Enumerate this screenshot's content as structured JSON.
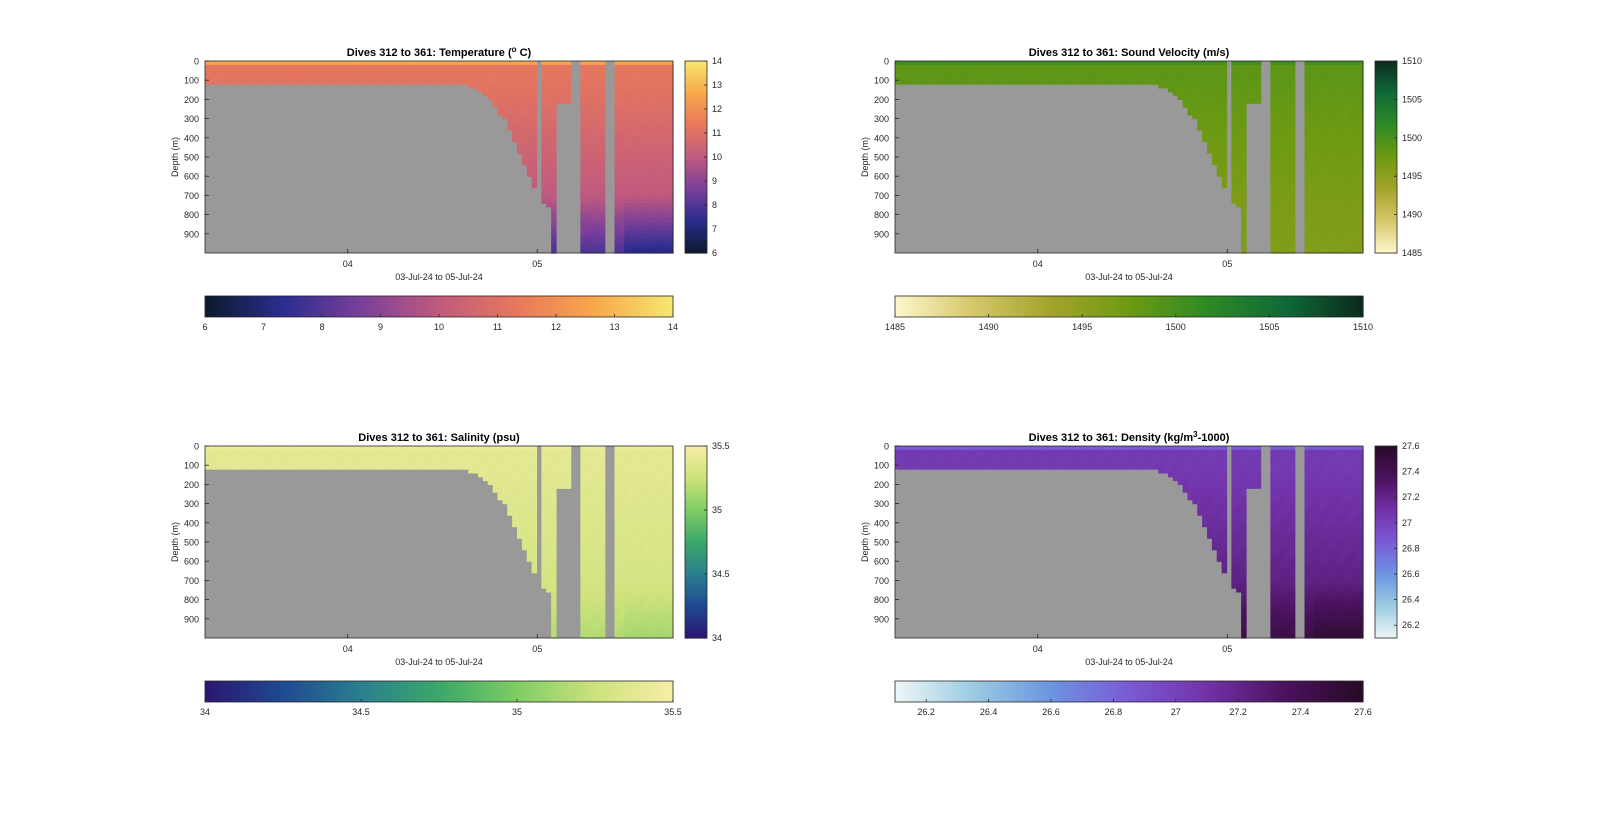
{
  "chart_data": [
    {
      "type": "heatmap",
      "title": "Dives 312 to 361: Temperature (° C)",
      "title_main": "Dives 312 to 361: Temperature (",
      "title_sup": "o",
      "title_tail": " C)",
      "xlabel": "03-Jul-24 to 05-Jul-24",
      "ylabel": "Depth (m)",
      "xticks": [
        "04",
        "05"
      ],
      "yticks": [
        "0",
        "100",
        "200",
        "300",
        "400",
        "500",
        "600",
        "700",
        "800",
        "900"
      ],
      "ylim": [
        0,
        1000
      ],
      "colormap": [
        "#0c1a2c",
        "#2a2d8f",
        "#7a3f9a",
        "#c05a7e",
        "#e8785c",
        "#f8a84a",
        "#f6e870"
      ],
      "colorbar": {
        "min": 6,
        "max": 14,
        "ticks": [
          "6",
          "7",
          "8",
          "9",
          "10",
          "11",
          "12",
          "13",
          "14"
        ]
      },
      "hcolorbar_ticks": [
        "6",
        "7",
        "8",
        "9",
        "10",
        "11",
        "12",
        "13",
        "14"
      ],
      "surface_value": 12.6,
      "mixed_value": 11.2,
      "deep_value": 10.0,
      "bottom_value": 7.6,
      "nodata_color": "#999999"
    },
    {
      "type": "heatmap",
      "title": "Dives 312 to 361: Sound Velocity (m/s)",
      "title_main": "Dives 312 to 361: Sound Velocity (m/s)",
      "title_sup": "",
      "title_tail": "",
      "xlabel": "03-Jul-24 to 05-Jul-24",
      "ylabel": "Depth (m)",
      "xticks": [
        "04",
        "05"
      ],
      "yticks": [
        "0",
        "100",
        "200",
        "300",
        "400",
        "500",
        "600",
        "700",
        "800",
        "900"
      ],
      "ylim": [
        0,
        1000
      ],
      "colormap": [
        "#fdf7cc",
        "#d5c76a",
        "#a3a32a",
        "#6e9a12",
        "#2e8a24",
        "#0f6a38",
        "#0c2a1c"
      ],
      "colorbar": {
        "min": 1485,
        "max": 1510,
        "ticks": [
          "1510",
          "1505",
          "1500",
          "1495",
          "1490",
          "1485"
        ]
      },
      "hcolorbar_ticks": [
        "1485",
        "1490",
        "1495",
        "1500",
        "1505",
        "1510"
      ],
      "surface_value": 1500.5,
      "mixed_value": 1498.5,
      "deep_value": 1496.5,
      "bottom_value": 1496.0,
      "nodata_color": "#999999"
    },
    {
      "type": "heatmap",
      "title": "Dives 312 to 361: Salinity (psu)",
      "title_main": "Dives 312 to 361: Salinity (psu)",
      "title_sup": "",
      "title_tail": "",
      "xlabel": "03-Jul-24 to 05-Jul-24",
      "ylabel": "Depth (m)",
      "xticks": [
        "04",
        "05"
      ],
      "yticks": [
        "0",
        "100",
        "200",
        "300",
        "400",
        "500",
        "600",
        "700",
        "800",
        "900"
      ],
      "ylim": [
        0,
        1000
      ],
      "colormap": [
        "#2a1670",
        "#1f4a92",
        "#2a7f8f",
        "#3aa86a",
        "#7fcd64",
        "#cde27c",
        "#f7eea6"
      ],
      "colorbar": {
        "min": 34,
        "max": 35.5,
        "ticks": [
          "35.5",
          "35",
          "34.5",
          "34"
        ]
      },
      "hcolorbar_ticks": [
        "34",
        "34.5",
        "35",
        "35.5"
      ],
      "surface_value": 35.42,
      "mixed_value": 35.38,
      "deep_value": 35.3,
      "bottom_value": 35.15,
      "nodata_color": "#999999"
    },
    {
      "type": "heatmap",
      "title": "Dives 312 to 361: Density (kg/m³-1000)",
      "title_main": "Dives 312 to 361: Density (kg/m",
      "title_sup": "3",
      "title_tail": "-1000)",
      "xlabel": "03-Jul-24 to 05-Jul-24",
      "ylabel": "Depth (m)",
      "xticks": [
        "04",
        "05"
      ],
      "yticks": [
        "0",
        "100",
        "200",
        "300",
        "400",
        "500",
        "600",
        "700",
        "800",
        "900"
      ],
      "ylim": [
        0,
        1000
      ],
      "colormap": [
        "#eef6f6",
        "#9ccbe2",
        "#6c94e0",
        "#7a5ad6",
        "#7232a8",
        "#4a125e",
        "#280a26"
      ],
      "colorbar": {
        "min": 26.1,
        "max": 27.6,
        "ticks": [
          "27.6",
          "27.4",
          "27.2",
          "27",
          "26.8",
          "26.6",
          "26.4",
          "26.2"
        ]
      },
      "hcolorbar_ticks": [
        "26.2",
        "26.4",
        "26.6",
        "26.8",
        "27",
        "27.2",
        "27.4",
        "27.6"
      ],
      "surface_value": 26.85,
      "mixed_value": 27.05,
      "deep_value": 27.22,
      "bottom_value": 27.48,
      "nodata_color": "#999999"
    }
  ]
}
